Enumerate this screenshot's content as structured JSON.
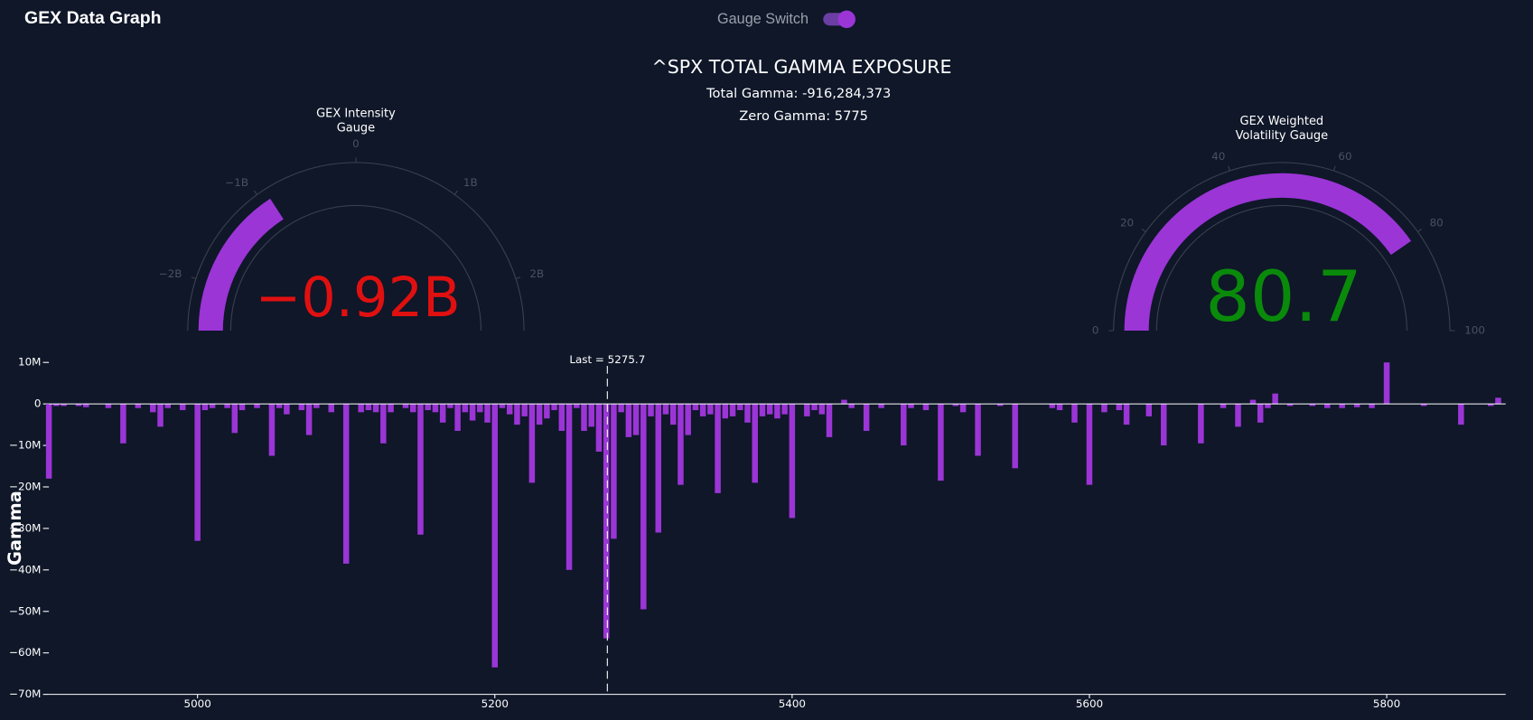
{
  "header": {
    "title": "GEX Data Graph",
    "switch_label": "Gauge Switch"
  },
  "summary": {
    "title": "^SPX TOTAL GAMMA EXPOSURE",
    "total": "Total Gamma: -916,284,373",
    "zero": "Zero Gamma: 5775"
  },
  "chart_data": [
    {
      "type": "gauge",
      "title": [
        "GEX Intensity",
        "Gauge"
      ],
      "range": [
        -2500000000,
        2500000000
      ],
      "ticks": [
        {
          "value": -2000000000,
          "label": "−2B"
        },
        {
          "value": -1000000000,
          "label": "−1B"
        },
        0,
        {
          "value": 1000000000,
          "label": "1B"
        },
        {
          "value": 2000000000,
          "label": "2B"
        }
      ],
      "value": -916284373,
      "value_label": "−0.92B",
      "color": "#9b35d6",
      "value_color": "#e01010"
    },
    {
      "type": "gauge",
      "title": [
        "GEX Weighted",
        "Volatility Gauge"
      ],
      "range": [
        0,
        100
      ],
      "ticks": [
        0,
        20,
        40,
        60,
        80,
        100
      ],
      "value": 80.7,
      "value_label": "80.7",
      "color": "#9b35d6",
      "value_color": "#0a8a0a"
    },
    {
      "type": "bar",
      "y_label": "Gamma",
      "color": "#9b35d6",
      "xlim": [
        4900,
        5880
      ],
      "xticks": [
        5000,
        5200,
        5400,
        5600,
        5800
      ],
      "ylim": [
        -70000000,
        12000000
      ],
      "yticks": [
        {
          "value": -70000000,
          "label": "−70M"
        },
        {
          "value": -60000000,
          "label": "−60M"
        },
        {
          "value": -50000000,
          "label": "−50M"
        },
        {
          "value": -40000000,
          "label": "−40M"
        },
        {
          "value": -30000000,
          "label": "−30M"
        },
        {
          "value": -20000000,
          "label": "−20M"
        },
        {
          "value": -10000000,
          "label": "−10M"
        },
        0,
        {
          "value": 10000000,
          "label": "10M"
        }
      ],
      "vline": {
        "x": 5275.7,
        "label": "Last = 5275.7"
      },
      "x": [
        4900,
        4905,
        4910,
        4920,
        4925,
        4940,
        4950,
        4960,
        4970,
        4975,
        4980,
        4990,
        5000,
        5005,
        5010,
        5020,
        5025,
        5030,
        5040,
        5050,
        5055,
        5060,
        5070,
        5075,
        5080,
        5090,
        5100,
        5110,
        5115,
        5120,
        5125,
        5130,
        5140,
        5145,
        5150,
        5155,
        5160,
        5165,
        5170,
        5175,
        5180,
        5185,
        5190,
        5195,
        5200,
        5205,
        5210,
        5215,
        5220,
        5225,
        5230,
        5235,
        5240,
        5245,
        5250,
        5255,
        5260,
        5265,
        5270,
        5275,
        5280,
        5285,
        5290,
        5295,
        5300,
        5305,
        5310,
        5315,
        5320,
        5325,
        5330,
        5335,
        5340,
        5345,
        5350,
        5355,
        5360,
        5365,
        5370,
        5375,
        5380,
        5385,
        5390,
        5395,
        5400,
        5410,
        5415,
        5420,
        5425,
        5435,
        5440,
        5450,
        5460,
        5475,
        5480,
        5490,
        5500,
        5510,
        5515,
        5525,
        5540,
        5550,
        5575,
        5580,
        5590,
        5600,
        5610,
        5620,
        5625,
        5640,
        5650,
        5675,
        5690,
        5700,
        5710,
        5715,
        5720,
        5725,
        5735,
        5750,
        5760,
        5770,
        5780,
        5790,
        5800,
        5825,
        5850,
        5870,
        5875
      ],
      "values": [
        -18000000,
        -500000,
        -500000,
        -500000,
        -800000,
        -1000000,
        -9500000,
        -1000000,
        -2000000,
        -5500000,
        -1000000,
        -1500000,
        -33000000,
        -1500000,
        -1000000,
        -1000000,
        -7000000,
        -1500000,
        -1000000,
        -12500000,
        -1000000,
        -2500000,
        -1500000,
        -7500000,
        -1000000,
        -2000000,
        -38500000,
        -2000000,
        -1500000,
        -2000000,
        -9500000,
        -2000000,
        -1000000,
        -2000000,
        -31500000,
        -1500000,
        -2000000,
        -4500000,
        -1000000,
        -6500000,
        -2000000,
        -4000000,
        -2000000,
        -4500000,
        -63500000,
        -1000000,
        -2500000,
        -5000000,
        -3000000,
        -19000000,
        -5000000,
        -3500000,
        -1500000,
        -6500000,
        -40000000,
        -1000000,
        -6500000,
        -5500000,
        -11500000,
        -56500000,
        -32500000,
        -2000000,
        -8000000,
        -7500000,
        -49500000,
        -3000000,
        -31000000,
        -2500000,
        -5000000,
        -19500000,
        -7500000,
        -1500000,
        -3000000,
        -2500000,
        -21500000,
        -3500000,
        -3000000,
        -1500000,
        -4500000,
        -19000000,
        -3000000,
        -2500000,
        -3500000,
        -2500000,
        -27500000,
        -3000000,
        -1500000,
        -2500000,
        -8000000,
        1000000,
        -1000000,
        -6500000,
        -1000000,
        -10000000,
        -1000000,
        -1500000,
        -18500000,
        -500000,
        -2000000,
        -12500000,
        -500000,
        -15500000,
        -1000000,
        -1500000,
        -4500000,
        -19500000,
        -2000000,
        -1500000,
        -5000000,
        -3000000,
        -10000000,
        -9500000,
        -1000000,
        -5500000,
        1000000,
        -4500000,
        -1000000,
        2500000,
        -500000,
        -500000,
        -1000000,
        -1000000,
        -800000,
        -1000000,
        10000000,
        -500000,
        -5000000,
        -500000,
        1500000
      ]
    }
  ]
}
